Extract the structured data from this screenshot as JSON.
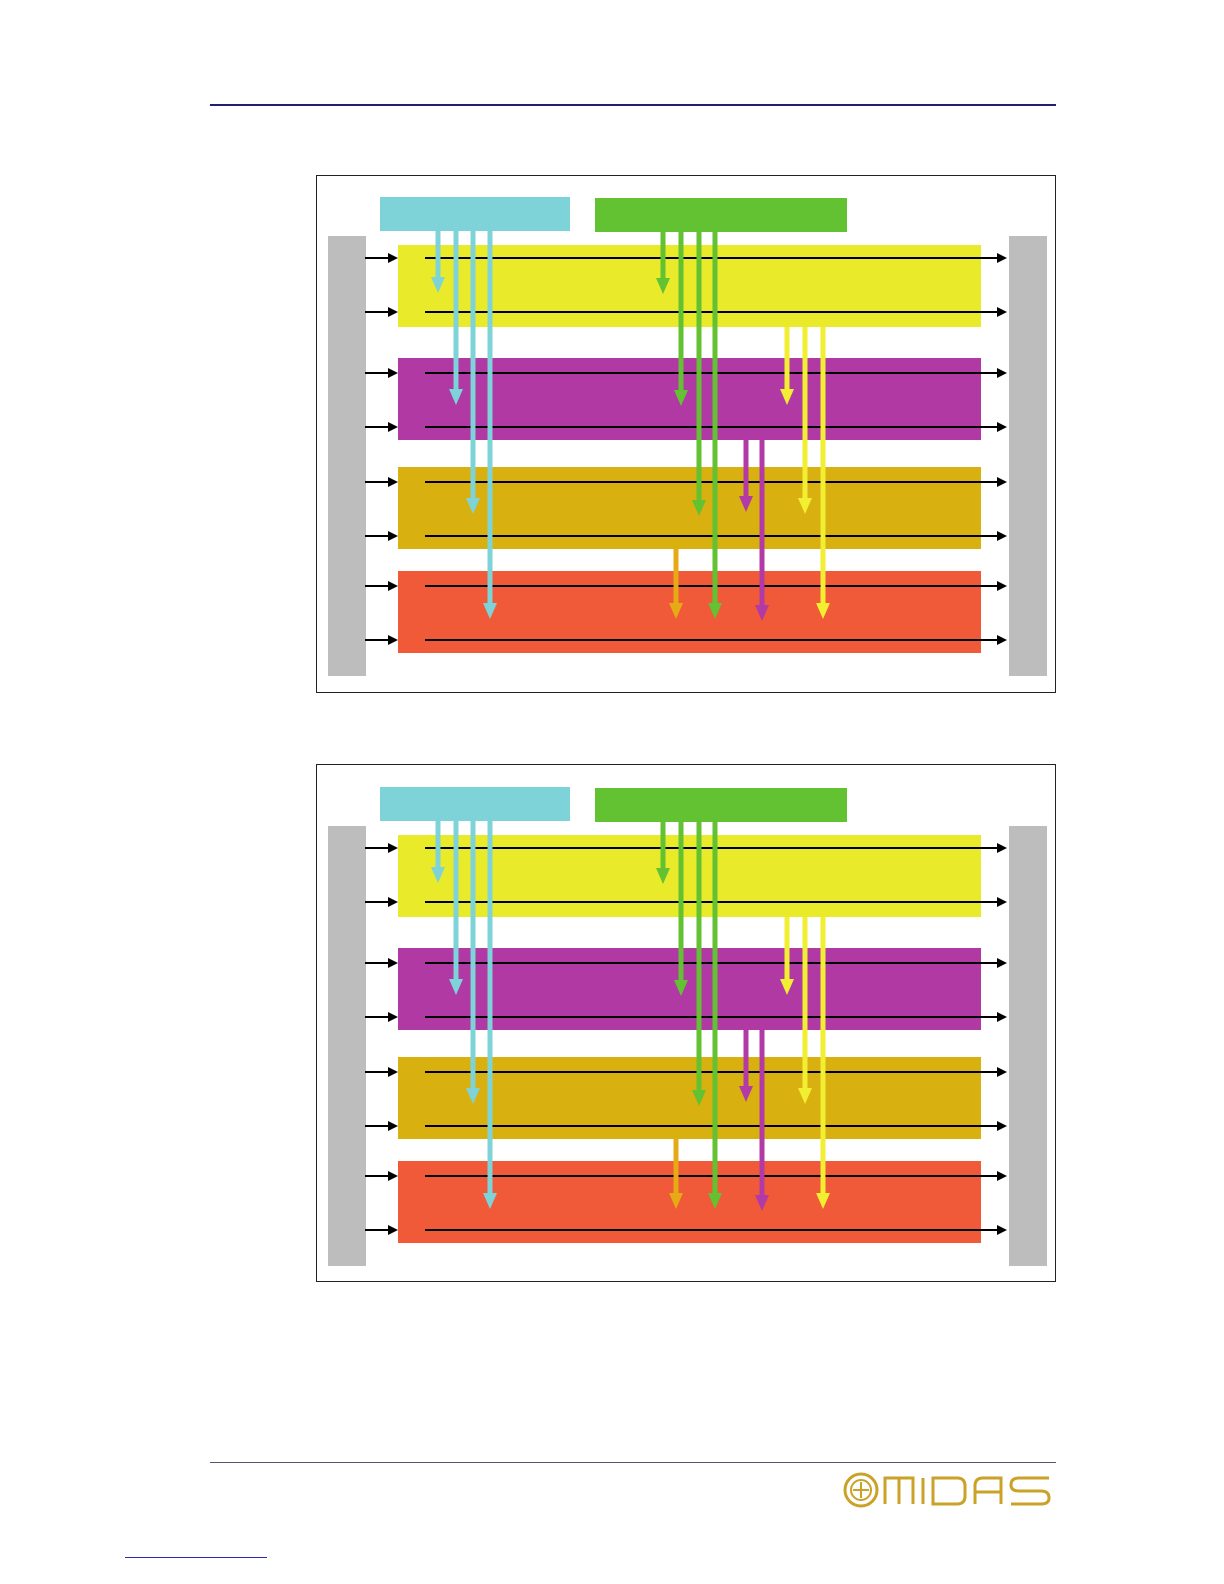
{
  "page": {
    "brand_logo_text": "MIDAS"
  },
  "diagrams": [
    {
      "id": "diagram-1"
    },
    {
      "id": "diagram-2"
    }
  ],
  "colors": {
    "side_bars": "#bdbdbd",
    "source_cyan": "#7dd3d8",
    "source_green": "#62c232",
    "band_yellow": "#e9eb2a",
    "band_magenta": "#b039a4",
    "band_gold": "#d8b010",
    "band_orange": "#f05a38",
    "arrow_cyan": "#7dd3d8",
    "arrow_green": "#62c232",
    "arrow_yellow": "#f2ee32",
    "arrow_magenta": "#b23aa6",
    "arrow_gold": "#e6aa14",
    "line_black": "#000000",
    "logo_gold": "#c9a227",
    "rule_navy": "#1f1f6b"
  }
}
